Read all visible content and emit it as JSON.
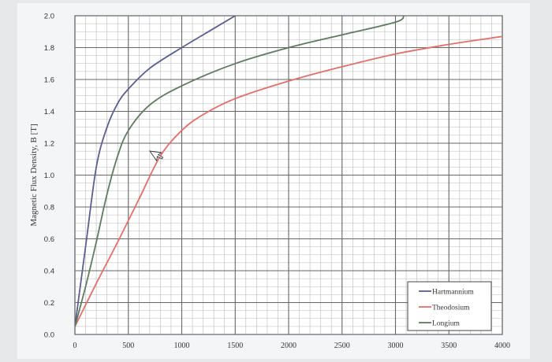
{
  "chart_data": {
    "type": "line",
    "title": "",
    "xlabel": "",
    "ylabel": "Magnetic Flux Density, B [T]",
    "xlim": [
      0,
      4000
    ],
    "ylim": [
      0.0,
      2.0
    ],
    "x_ticks": [
      "0",
      "500",
      "1000",
      "1500",
      "2000",
      "2500",
      "3000",
      "3500",
      "4000"
    ],
    "y_ticks": [
      "0.0",
      "0.2",
      "0.4",
      "0.6",
      "0.8",
      "1.0",
      "1.2",
      "1.4",
      "1.6",
      "1.8",
      "2.0"
    ],
    "grid": true,
    "legend_position": "bottom-right",
    "series": [
      {
        "name": "Hartmannium",
        "color": "#5a5f8f",
        "points": [
          [
            0,
            0.05
          ],
          [
            100,
            0.55
          ],
          [
            200,
            1.05
          ],
          [
            300,
            1.3
          ],
          [
            400,
            1.45
          ],
          [
            500,
            1.54
          ],
          [
            700,
            1.67
          ],
          [
            1000,
            1.8
          ],
          [
            1300,
            1.92
          ],
          [
            1500,
            2.0
          ]
        ]
      },
      {
        "name": "Theodosium",
        "color": "#e0706c",
        "points": [
          [
            0,
            0.05
          ],
          [
            200,
            0.32
          ],
          [
            400,
            0.58
          ],
          [
            600,
            0.85
          ],
          [
            800,
            1.12
          ],
          [
            1000,
            1.28
          ],
          [
            1200,
            1.38
          ],
          [
            1500,
            1.48
          ],
          [
            2000,
            1.59
          ],
          [
            2500,
            1.68
          ],
          [
            3000,
            1.76
          ],
          [
            3500,
            1.82
          ],
          [
            4000,
            1.87
          ]
        ]
      },
      {
        "name": "Longium",
        "color": "#5f7a5f",
        "points": [
          [
            0,
            0.05
          ],
          [
            100,
            0.3
          ],
          [
            200,
            0.58
          ],
          [
            300,
            0.88
          ],
          [
            400,
            1.12
          ],
          [
            500,
            1.28
          ],
          [
            700,
            1.44
          ],
          [
            1000,
            1.56
          ],
          [
            1500,
            1.7
          ],
          [
            2000,
            1.8
          ],
          [
            2500,
            1.88
          ],
          [
            3000,
            1.96
          ],
          [
            3080,
            2.0
          ]
        ]
      }
    ]
  }
}
